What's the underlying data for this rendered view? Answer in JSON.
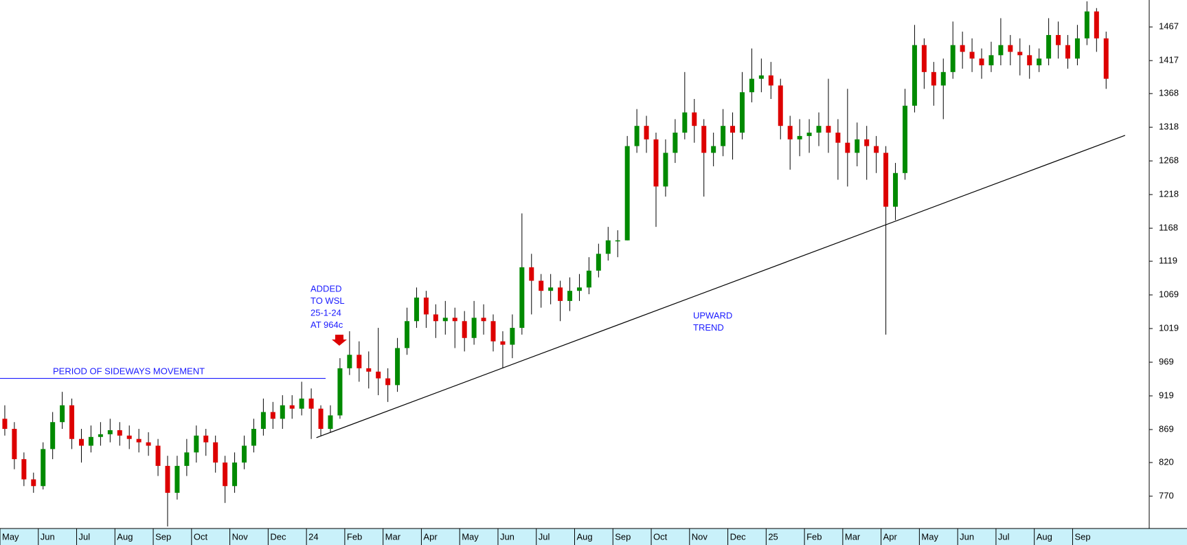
{
  "chart_data": {
    "type": "candlestick",
    "x": [
      0.125,
      0.375,
      0.625,
      0.875,
      1.125,
      1.375,
      1.625,
      1.875,
      2.125,
      2.375,
      2.625,
      2.875,
      3.125,
      3.375,
      3.625,
      3.875,
      4.125,
      4.375,
      4.625,
      4.875,
      5.125,
      5.375,
      5.625,
      5.875,
      6.125,
      6.375,
      6.625,
      6.875,
      7.125,
      7.375,
      7.625,
      7.875,
      8.125,
      8.375,
      8.625,
      8.875,
      9.125,
      9.375,
      9.625,
      9.875,
      10.125,
      10.375,
      10.625,
      10.875,
      11.125,
      11.375,
      11.625,
      11.875,
      12.125,
      12.375,
      12.625,
      12.875,
      13.125,
      13.375,
      13.625,
      13.875,
      14.125,
      14.375,
      14.625,
      14.875,
      15.125,
      15.375,
      15.625,
      15.875,
      16.125,
      16.375,
      16.625,
      16.875,
      17.125,
      17.375,
      17.625,
      17.875,
      18.125,
      18.375,
      18.625,
      18.875,
      19.125,
      19.375,
      19.625,
      19.875,
      20.125,
      20.375,
      20.625,
      20.875,
      21.125,
      21.375,
      21.625,
      21.875,
      22.125,
      22.375,
      22.625,
      22.875,
      23.125,
      23.375,
      23.625,
      23.875,
      24.125,
      24.375,
      24.625,
      24.875,
      25.125,
      25.375,
      25.625,
      25.875,
      26.125,
      26.375,
      26.625,
      26.875,
      27.125,
      27.375,
      27.625,
      27.875,
      28.125,
      28.375,
      28.625,
      28.875
    ],
    "open": [
      885,
      870,
      825,
      795,
      785,
      840,
      880,
      905,
      855,
      845,
      858,
      862,
      868,
      860,
      855,
      850,
      845,
      815,
      775,
      815,
      835,
      860,
      850,
      820,
      785,
      820,
      845,
      870,
      895,
      885,
      905,
      900,
      915,
      900,
      870,
      890,
      960,
      980,
      960,
      955,
      945,
      935,
      990,
      1030,
      1065,
      1040,
      1030,
      1035,
      1030,
      1005,
      1035,
      1030,
      1000,
      995,
      1020,
      1110,
      1090,
      1075,
      1080,
      1060,
      1075,
      1080,
      1105,
      1130,
      1150,
      1150,
      1290,
      1320,
      1300,
      1230,
      1280,
      1310,
      1340,
      1320,
      1280,
      1290,
      1320,
      1310,
      1370,
      1390,
      1395,
      1380,
      1320,
      1300,
      1305,
      1310,
      1320,
      1310,
      1295,
      1280,
      1300,
      1290,
      1280,
      1200,
      1250,
      1350,
      1440,
      1400,
      1380,
      1400,
      1440,
      1430,
      1420,
      1410,
      1425,
      1440,
      1430,
      1425,
      1410,
      1420,
      1455,
      1440,
      1420,
      1450,
      1490,
      1450
    ],
    "high": [
      905,
      880,
      835,
      805,
      850,
      895,
      925,
      915,
      870,
      875,
      880,
      885,
      880,
      875,
      870,
      865,
      855,
      830,
      830,
      855,
      875,
      870,
      860,
      830,
      835,
      860,
      885,
      915,
      910,
      920,
      920,
      940,
      930,
      905,
      905,
      975,
      1015,
      1000,
      985,
      1020,
      960,
      1005,
      1050,
      1080,
      1075,
      1055,
      1060,
      1050,
      1045,
      1060,
      1055,
      1040,
      1015,
      1040,
      1190,
      1130,
      1100,
      1100,
      1090,
      1095,
      1100,
      1125,
      1145,
      1170,
      1165,
      1305,
      1345,
      1335,
      1310,
      1300,
      1330,
      1400,
      1360,
      1330,
      1310,
      1345,
      1340,
      1400,
      1435,
      1420,
      1415,
      1390,
      1335,
      1330,
      1330,
      1340,
      1390,
      1330,
      1375,
      1325,
      1320,
      1305,
      1290,
      1265,
      1375,
      1470,
      1450,
      1415,
      1420,
      1475,
      1460,
      1450,
      1435,
      1445,
      1480,
      1455,
      1450,
      1440,
      1435,
      1480,
      1475,
      1455,
      1470,
      1505,
      1495,
      1460
    ],
    "low": [
      860,
      810,
      785,
      775,
      780,
      825,
      870,
      840,
      820,
      835,
      845,
      850,
      845,
      840,
      835,
      830,
      800,
      725,
      765,
      800,
      820,
      830,
      805,
      760,
      775,
      810,
      835,
      860,
      870,
      870,
      885,
      890,
      855,
      860,
      865,
      885,
      950,
      940,
      930,
      920,
      910,
      925,
      980,
      1020,
      1020,
      1005,
      1010,
      990,
      985,
      995,
      1010,
      985,
      960,
      975,
      1010,
      1040,
      1050,
      1055,
      1030,
      1045,
      1060,
      1070,
      1095,
      1120,
      1125,
      1150,
      1280,
      1280,
      1170,
      1215,
      1265,
      1300,
      1295,
      1215,
      1260,
      1275,
      1270,
      1300,
      1355,
      1370,
      1360,
      1300,
      1255,
      1275,
      1280,
      1290,
      1280,
      1240,
      1230,
      1260,
      1240,
      1250,
      1010,
      1180,
      1240,
      1340,
      1375,
      1350,
      1330,
      1390,
      1405,
      1400,
      1390,
      1400,
      1410,
      1410,
      1395,
      1390,
      1400,
      1410,
      1420,
      1405,
      1410,
      1440,
      1430,
      1375
    ],
    "close": [
      870,
      825,
      795,
      785,
      840,
      880,
      905,
      855,
      845,
      858,
      862,
      868,
      860,
      855,
      850,
      845,
      815,
      775,
      815,
      835,
      860,
      850,
      820,
      785,
      820,
      845,
      870,
      895,
      885,
      905,
      900,
      915,
      900,
      870,
      890,
      960,
      980,
      960,
      955,
      945,
      935,
      990,
      1030,
      1065,
      1040,
      1030,
      1035,
      1030,
      1005,
      1035,
      1030,
      1000,
      995,
      1020,
      1110,
      1090,
      1075,
      1080,
      1060,
      1075,
      1080,
      1105,
      1130,
      1150,
      1150,
      1290,
      1320,
      1300,
      1230,
      1280,
      1310,
      1340,
      1320,
      1280,
      1290,
      1320,
      1310,
      1370,
      1390,
      1395,
      1380,
      1320,
      1300,
      1305,
      1310,
      1320,
      1310,
      1295,
      1280,
      1300,
      1290,
      1280,
      1200,
      1250,
      1350,
      1440,
      1400,
      1380,
      1400,
      1440,
      1430,
      1420,
      1410,
      1425,
      1440,
      1430,
      1425,
      1410,
      1420,
      1455,
      1440,
      1420,
      1450,
      1490,
      1450,
      1390
    ],
    "up_color": "#008a00",
    "down_color": "#dd0000",
    "xlim": [
      0,
      30
    ],
    "xticks": [
      {
        "value": 0,
        "label": "May"
      },
      {
        "value": 1,
        "label": "Jun"
      },
      {
        "value": 2,
        "label": "Jul"
      },
      {
        "value": 3,
        "label": "Aug"
      },
      {
        "value": 4,
        "label": "Sep"
      },
      {
        "value": 5,
        "label": "Oct"
      },
      {
        "value": 6,
        "label": "Nov"
      },
      {
        "value": 7,
        "label": "Dec"
      },
      {
        "value": 8,
        "label": "24"
      },
      {
        "value": 9,
        "label": "Feb"
      },
      {
        "value": 10,
        "label": "Mar"
      },
      {
        "value": 11,
        "label": "Apr"
      },
      {
        "value": 12,
        "label": "May"
      },
      {
        "value": 13,
        "label": "Jun"
      },
      {
        "value": 14,
        "label": "Jul"
      },
      {
        "value": 15,
        "label": "Aug"
      },
      {
        "value": 16,
        "label": "Sep"
      },
      {
        "value": 17,
        "label": "Oct"
      },
      {
        "value": 18,
        "label": "Nov"
      },
      {
        "value": 19,
        "label": "Dec"
      },
      {
        "value": 20,
        "label": "25"
      },
      {
        "value": 21,
        "label": "Feb"
      },
      {
        "value": 22,
        "label": "Mar"
      },
      {
        "value": 23,
        "label": "Apr"
      },
      {
        "value": 24,
        "label": "May"
      },
      {
        "value": 25,
        "label": "Jun"
      },
      {
        "value": 26,
        "label": "Jul"
      },
      {
        "value": 27,
        "label": "Aug"
      },
      {
        "value": 28,
        "label": "Sep"
      }
    ],
    "ylim": [
      722,
      1507
    ],
    "yticks": [
      770,
      820,
      869,
      919,
      969,
      1019,
      1069,
      1119,
      1168,
      1218,
      1268,
      1318,
      1368,
      1417,
      1467
    ],
    "lines": [
      {
        "x": [
          0,
          8.5
        ],
        "y": [
          945,
          945
        ],
        "color": "#1a1aff"
      },
      {
        "x": [
          8.26,
          29.37
        ],
        "y": [
          857,
          1306
        ],
        "color": "#000000"
      }
    ],
    "annotations": [
      {
        "lines": [
          "PERIOD OF SIDEWAYS MOVEMENT"
        ]
      },
      {
        "lines": [
          "ADDED",
          "TO WSL",
          "25-1-24",
          "AT 964c"
        ]
      },
      {
        "lines": [
          "UPWARD",
          "TREND"
        ]
      }
    ]
  }
}
